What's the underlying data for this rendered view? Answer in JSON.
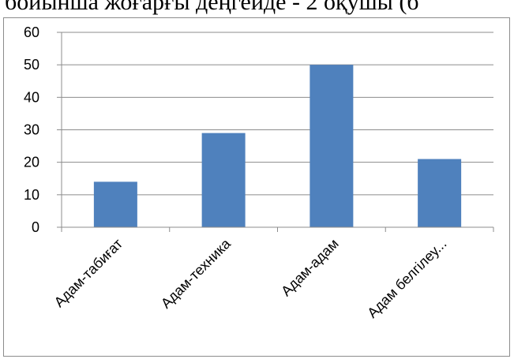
{
  "header": {
    "partial_text": "бойынша жоғарғы деңгейде - 2 оқушы (б"
  },
  "chart_data": {
    "type": "bar",
    "categories": [
      "Адам-табиғат",
      "Адам-техника",
      "Адам-адам",
      "Адам белгілеу..."
    ],
    "values": [
      14,
      29,
      50,
      21
    ],
    "ylim": [
      0,
      60
    ],
    "yticks": [
      0,
      10,
      20,
      30,
      40,
      50,
      60
    ],
    "grid": true,
    "bar_color": "#4f81bd",
    "grid_color": "#8c8c8c",
    "axis_color": "#8c8c8c",
    "title": "",
    "xlabel": "",
    "ylabel": ""
  }
}
